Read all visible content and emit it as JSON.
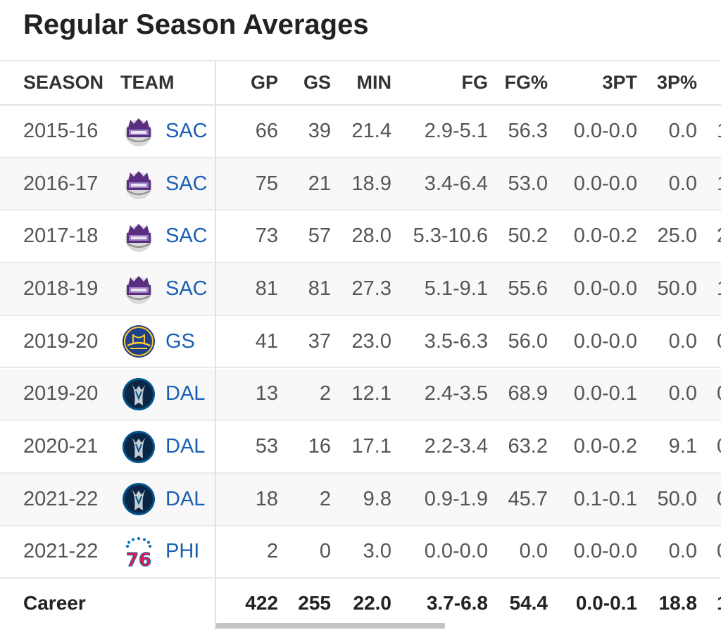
{
  "title": "Regular Season Averages",
  "columns": [
    "SEASON",
    "TEAM",
    "GP",
    "GS",
    "MIN",
    "FG",
    "FG%",
    "3PT",
    "3P%"
  ],
  "rows": [
    {
      "season": "2015-16",
      "team": "SAC",
      "logo": "kings-logo",
      "gp": "66",
      "gs": "39",
      "min": "21.4",
      "fg": "2.9-5.1",
      "fgp": "56.3",
      "tpt": "0.0-0.0",
      "tpp": "0.0",
      "cut": "1"
    },
    {
      "season": "2016-17",
      "team": "SAC",
      "logo": "kings-logo",
      "gp": "75",
      "gs": "21",
      "min": "18.9",
      "fg": "3.4-6.4",
      "fgp": "53.0",
      "tpt": "0.0-0.0",
      "tpp": "0.0",
      "cut": "1"
    },
    {
      "season": "2017-18",
      "team": "SAC",
      "logo": "kings-logo",
      "gp": "73",
      "gs": "57",
      "min": "28.0",
      "fg": "5.3-10.6",
      "fgp": "50.2",
      "tpt": "0.0-0.2",
      "tpp": "25.0",
      "cut": "2"
    },
    {
      "season": "2018-19",
      "team": "SAC",
      "logo": "kings-logo",
      "gp": "81",
      "gs": "81",
      "min": "27.3",
      "fg": "5.1-9.1",
      "fgp": "55.6",
      "tpt": "0.0-0.0",
      "tpp": "50.0",
      "cut": "1"
    },
    {
      "season": "2019-20",
      "team": "GS",
      "logo": "warriors-logo",
      "gp": "41",
      "gs": "37",
      "min": "23.0",
      "fg": "3.5-6.3",
      "fgp": "56.0",
      "tpt": "0.0-0.0",
      "tpp": "0.0",
      "cut": "0"
    },
    {
      "season": "2019-20",
      "team": "DAL",
      "logo": "mavericks-logo",
      "gp": "13",
      "gs": "2",
      "min": "12.1",
      "fg": "2.4-3.5",
      "fgp": "68.9",
      "tpt": "0.0-0.1",
      "tpp": "0.0",
      "cut": "0"
    },
    {
      "season": "2020-21",
      "team": "DAL",
      "logo": "mavericks-logo",
      "gp": "53",
      "gs": "16",
      "min": "17.1",
      "fg": "2.2-3.4",
      "fgp": "63.2",
      "tpt": "0.0-0.2",
      "tpp": "9.1",
      "cut": "0"
    },
    {
      "season": "2021-22",
      "team": "DAL",
      "logo": "mavericks-logo",
      "gp": "18",
      "gs": "2",
      "min": "9.8",
      "fg": "0.9-1.9",
      "fgp": "45.7",
      "tpt": "0.1-0.1",
      "tpp": "50.0",
      "cut": "0"
    },
    {
      "season": "2021-22",
      "team": "PHI",
      "logo": "76ers-logo",
      "gp": "2",
      "gs": "0",
      "min": "3.0",
      "fg": "0.0-0.0",
      "fgp": "0.0",
      "tpt": "0.0-0.0",
      "tpp": "0.0",
      "cut": "0"
    }
  ],
  "career": {
    "label": "Career",
    "gp": "422",
    "gs": "255",
    "min": "22.0",
    "fg": "3.7-6.8",
    "fgp": "54.4",
    "tpt": "0.0-0.1",
    "tpp": "18.8",
    "cut": "1"
  },
  "colors": {
    "link": "#1a5fb4",
    "kings": "#5a2d81",
    "warriors": "#1d428a",
    "warriors_gold": "#ffc72c",
    "mavericks": "#00538c",
    "sixers_red": "#ed174c",
    "sixers_blue": "#006bb6"
  }
}
